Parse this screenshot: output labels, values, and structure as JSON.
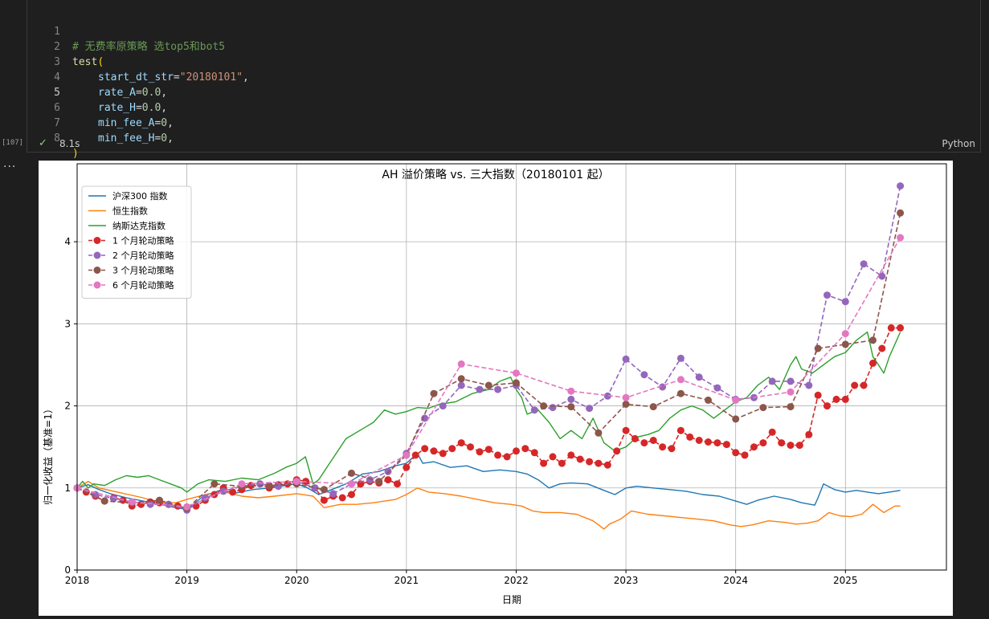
{
  "cell": {
    "exec_count": "[107]",
    "status_time": "8.1s",
    "language": "Python",
    "line_numbers": [
      "1",
      "2",
      "3",
      "4",
      "5",
      "6",
      "7",
      "8"
    ],
    "code": {
      "comment": "# 无费率原策略 选top5和bot5",
      "fn_name": "test",
      "open_paren": "(",
      "p1_name": "start_dt_str",
      "p1_value": "\"20180101\"",
      "p2_name": "rate_A",
      "p2_value": "0.0",
      "p3_name": "rate_H",
      "p3_value": "0.0",
      "p4_name": "min_fee_A",
      "p4_value": "0",
      "p5_name": "min_fee_H",
      "p5_value": "0",
      "eq": "=",
      "comma": ",",
      "close_paren": ")"
    }
  },
  "more_label": "...",
  "chart_data": {
    "type": "line",
    "title": "AH 溢价策略 vs. 三大指数（20180101 起）",
    "xlabel": "日期",
    "ylabel": "归一化收益（基准=1）",
    "xlim": [
      2018.0,
      2025.92
    ],
    "ylim": [
      0,
      4.95
    ],
    "xticks": [
      "2018",
      "2019",
      "2020",
      "2021",
      "2022",
      "2023",
      "2024",
      "2025"
    ],
    "yticks": [
      "0",
      "1",
      "2",
      "3",
      "4"
    ],
    "grid": true,
    "legend_position": "upper-left",
    "colors": {
      "hs300": "#1f77b4",
      "hsi": "#ff7f0e",
      "nasdaq": "#2ca02c",
      "s1": "#d62728",
      "s2": "#9467bd",
      "s3": "#8c564b",
      "s6": "#e377c2"
    },
    "series": [
      {
        "name": "沪深300 指数",
        "key": "hs300",
        "style": "line",
        "x": [
          2018.0,
          2018.1,
          2018.2,
          2018.3,
          2018.45,
          2018.6,
          2018.75,
          2018.9,
          2019.0,
          2019.15,
          2019.3,
          2019.45,
          2019.6,
          2019.75,
          2019.9,
          2020.0,
          2020.1,
          2020.2,
          2020.3,
          2020.45,
          2020.6,
          2020.75,
          2020.9,
          2021.0,
          2021.1,
          2021.15,
          2021.25,
          2021.4,
          2021.55,
          2021.7,
          2021.85,
          2022.0,
          2022.1,
          2022.2,
          2022.3,
          2022.4,
          2022.5,
          2022.65,
          2022.8,
          2022.9,
          2023.0,
          2023.1,
          2023.25,
          2023.4,
          2023.55,
          2023.7,
          2023.85,
          2024.0,
          2024.1,
          2024.2,
          2024.35,
          2024.5,
          2024.6,
          2024.72,
          2024.75,
          2024.8,
          2024.9,
          2025.0,
          2025.1,
          2025.2,
          2025.3,
          2025.4,
          2025.5
        ],
        "y": [
          1.0,
          1.04,
          0.98,
          0.93,
          0.88,
          0.84,
          0.8,
          0.76,
          0.74,
          0.9,
          0.97,
          0.94,
          0.98,
          1.0,
          1.03,
          1.05,
          1.0,
          0.92,
          0.97,
          1.05,
          1.17,
          1.2,
          1.27,
          1.3,
          1.42,
          1.3,
          1.32,
          1.25,
          1.27,
          1.2,
          1.22,
          1.2,
          1.17,
          1.1,
          1.0,
          1.05,
          1.06,
          1.05,
          0.97,
          0.92,
          1.0,
          1.02,
          1.0,
          0.98,
          0.96,
          0.92,
          0.9,
          0.84,
          0.8,
          0.85,
          0.9,
          0.86,
          0.82,
          0.79,
          0.88,
          1.05,
          0.98,
          0.95,
          0.97,
          0.95,
          0.93,
          0.95,
          0.97
        ]
      },
      {
        "name": "恒生指数",
        "key": "hsi",
        "style": "line",
        "x": [
          2018.0,
          2018.1,
          2018.2,
          2018.4,
          2018.6,
          2018.75,
          2018.9,
          2019.0,
          2019.2,
          2019.35,
          2019.5,
          2019.65,
          2019.8,
          2020.0,
          2020.15,
          2020.25,
          2020.4,
          2020.55,
          2020.7,
          2020.9,
          2021.0,
          2021.1,
          2021.2,
          2021.35,
          2021.5,
          2021.65,
          2021.8,
          2021.95,
          2022.05,
          2022.15,
          2022.25,
          2022.4,
          2022.55,
          2022.7,
          2022.8,
          2022.85,
          2022.95,
          2023.05,
          2023.2,
          2023.35,
          2023.5,
          2023.65,
          2023.8,
          2023.95,
          2024.05,
          2024.15,
          2024.3,
          2024.45,
          2024.55,
          2024.65,
          2024.75,
          2024.85,
          2024.95,
          2025.05,
          2025.15,
          2025.25,
          2025.35,
          2025.45,
          2025.5
        ],
        "y": [
          1.0,
          1.08,
          1.0,
          0.94,
          0.88,
          0.82,
          0.82,
          0.86,
          0.93,
          0.95,
          0.9,
          0.88,
          0.9,
          0.93,
          0.9,
          0.76,
          0.8,
          0.8,
          0.82,
          0.86,
          0.92,
          1.0,
          0.95,
          0.93,
          0.9,
          0.86,
          0.82,
          0.8,
          0.78,
          0.72,
          0.7,
          0.7,
          0.68,
          0.6,
          0.5,
          0.56,
          0.62,
          0.72,
          0.68,
          0.66,
          0.64,
          0.62,
          0.6,
          0.55,
          0.53,
          0.55,
          0.6,
          0.58,
          0.56,
          0.57,
          0.6,
          0.7,
          0.66,
          0.65,
          0.68,
          0.8,
          0.7,
          0.78,
          0.78
        ]
      },
      {
        "name": "纳斯达克指数",
        "key": "nasdaq",
        "style": "line",
        "x": [
          2018.0,
          2018.05,
          2018.1,
          2018.15,
          2018.25,
          2018.35,
          2018.45,
          2018.55,
          2018.65,
          2018.75,
          2018.85,
          2018.95,
          2019.0,
          2019.1,
          2019.2,
          2019.35,
          2019.5,
          2019.65,
          2019.8,
          2019.9,
          2020.0,
          2020.08,
          2020.15,
          2020.2,
          2020.3,
          2020.45,
          2020.6,
          2020.7,
          2020.8,
          2020.9,
          2021.0,
          2021.1,
          2021.2,
          2021.3,
          2021.45,
          2021.6,
          2021.75,
          2021.85,
          2021.95,
          2022.0,
          2022.05,
          2022.1,
          2022.2,
          2022.3,
          2022.4,
          2022.5,
          2022.6,
          2022.7,
          2022.8,
          2022.9,
          2023.0,
          2023.1,
          2023.2,
          2023.3,
          2023.4,
          2023.5,
          2023.6,
          2023.7,
          2023.8,
          2023.9,
          2024.0,
          2024.1,
          2024.2,
          2024.3,
          2024.4,
          2024.5,
          2024.55,
          2024.6,
          2024.7,
          2024.8,
          2024.9,
          2025.0,
          2025.1,
          2025.15,
          2025.2,
          2025.25,
          2025.3,
          2025.35,
          2025.4,
          2025.5
        ],
        "y": [
          1.0,
          1.08,
          1.0,
          1.05,
          1.03,
          1.1,
          1.15,
          1.13,
          1.15,
          1.1,
          1.05,
          1.0,
          0.95,
          1.05,
          1.1,
          1.08,
          1.12,
          1.1,
          1.18,
          1.25,
          1.3,
          1.38,
          1.05,
          1.1,
          1.3,
          1.6,
          1.72,
          1.8,
          1.95,
          1.9,
          1.93,
          1.98,
          1.97,
          2.02,
          2.05,
          2.15,
          2.2,
          2.3,
          2.35,
          2.2,
          2.1,
          1.9,
          1.95,
          1.8,
          1.6,
          1.7,
          1.6,
          1.85,
          1.55,
          1.45,
          1.5,
          1.62,
          1.65,
          1.7,
          1.85,
          1.95,
          2.0,
          1.95,
          1.85,
          1.95,
          2.05,
          2.1,
          2.25,
          2.35,
          2.2,
          2.5,
          2.6,
          2.45,
          2.4,
          2.5,
          2.6,
          2.65,
          2.8,
          2.85,
          2.9,
          2.6,
          2.5,
          2.4,
          2.6,
          2.9
        ]
      },
      {
        "name": "1 个月轮动策略",
        "key": "s1",
        "style": "markers",
        "x": [
          2018.0,
          2018.083,
          2018.167,
          2018.25,
          2018.333,
          2018.417,
          2018.5,
          2018.583,
          2018.667,
          2018.75,
          2018.833,
          2018.917,
          2019.0,
          2019.083,
          2019.167,
          2019.25,
          2019.333,
          2019.417,
          2019.5,
          2019.583,
          2019.667,
          2019.75,
          2019.833,
          2019.917,
          2020.0,
          2020.083,
          2020.167,
          2020.25,
          2020.333,
          2020.417,
          2020.5,
          2020.583,
          2020.667,
          2020.75,
          2020.833,
          2020.917,
          2021.0,
          2021.083,
          2021.167,
          2021.25,
          2021.333,
          2021.417,
          2021.5,
          2021.583,
          2021.667,
          2021.75,
          2021.833,
          2021.917,
          2022.0,
          2022.083,
          2022.167,
          2022.25,
          2022.333,
          2022.417,
          2022.5,
          2022.583,
          2022.667,
          2022.75,
          2022.833,
          2022.917,
          2023.0,
          2023.083,
          2023.167,
          2023.25,
          2023.333,
          2023.417,
          2023.5,
          2023.583,
          2023.667,
          2023.75,
          2023.833,
          2023.917,
          2024.0,
          2024.083,
          2024.167,
          2024.25,
          2024.333,
          2024.417,
          2024.5,
          2024.583,
          2024.667,
          2024.75,
          2024.833,
          2024.917,
          2025.0,
          2025.083,
          2025.167,
          2025.25,
          2025.333,
          2025.417,
          2025.5
        ],
        "y": [
          1.0,
          0.95,
          0.9,
          0.84,
          0.88,
          0.85,
          0.78,
          0.8,
          0.83,
          0.82,
          0.8,
          0.78,
          0.75,
          0.78,
          0.85,
          0.92,
          1.0,
          0.95,
          0.98,
          1.03,
          1.05,
          1.0,
          1.04,
          1.05,
          1.1,
          1.08,
          1.0,
          0.85,
          0.9,
          0.88,
          0.92,
          1.05,
          1.08,
          1.06,
          1.1,
          1.05,
          1.25,
          1.4,
          1.48,
          1.45,
          1.42,
          1.48,
          1.55,
          1.5,
          1.44,
          1.47,
          1.4,
          1.38,
          1.45,
          1.48,
          1.43,
          1.3,
          1.38,
          1.3,
          1.4,
          1.35,
          1.32,
          1.3,
          1.28,
          1.45,
          1.7,
          1.6,
          1.55,
          1.58,
          1.5,
          1.48,
          1.7,
          1.62,
          1.58,
          1.56,
          1.55,
          1.53,
          1.43,
          1.4,
          1.5,
          1.55,
          1.68,
          1.55,
          1.52,
          1.52,
          1.65,
          2.13,
          2.0,
          2.08,
          2.08,
          2.25,
          2.25,
          2.52,
          2.7,
          2.95,
          2.95
        ]
      },
      {
        "name": "2 个月轮动策略",
        "key": "s2",
        "style": "markers",
        "x": [
          2018.0,
          2018.167,
          2018.333,
          2018.5,
          2018.667,
          2018.833,
          2019.0,
          2019.167,
          2019.333,
          2019.5,
          2019.667,
          2019.833,
          2020.0,
          2020.167,
          2020.333,
          2020.5,
          2020.667,
          2020.833,
          2021.0,
          2021.167,
          2021.333,
          2021.5,
          2021.667,
          2021.833,
          2022.0,
          2022.167,
          2022.333,
          2022.5,
          2022.667,
          2022.833,
          2023.0,
          2023.167,
          2023.333,
          2023.5,
          2023.667,
          2023.833,
          2024.0,
          2024.167,
          2024.333,
          2024.5,
          2024.667,
          2024.833,
          2025.0,
          2025.167,
          2025.333,
          2025.5
        ],
        "y": [
          1.0,
          0.92,
          0.87,
          0.83,
          0.8,
          0.8,
          0.73,
          0.88,
          0.96,
          1.02,
          1.05,
          1.02,
          1.08,
          1.0,
          0.93,
          1.05,
          1.1,
          1.2,
          1.42,
          1.85,
          2.0,
          2.25,
          2.2,
          2.2,
          2.25,
          1.95,
          1.98,
          2.08,
          1.97,
          2.12,
          2.57,
          2.38,
          2.23,
          2.58,
          2.35,
          2.22,
          2.08,
          2.1,
          2.3,
          2.3,
          2.25,
          3.35,
          3.27,
          3.73,
          3.58,
          4.68
        ]
      },
      {
        "name": "3 个月轮动策略",
        "key": "s3",
        "style": "markers",
        "x": [
          2018.0,
          2018.25,
          2018.5,
          2018.75,
          2019.0,
          2019.25,
          2019.5,
          2019.75,
          2020.0,
          2020.25,
          2020.5,
          2020.75,
          2021.0,
          2021.25,
          2021.5,
          2021.75,
          2022.0,
          2022.25,
          2022.5,
          2022.75,
          2023.0,
          2023.25,
          2023.5,
          2023.75,
          2024.0,
          2024.25,
          2024.5,
          2024.75,
          2025.0,
          2025.25,
          2025.5
        ],
        "y": [
          1.0,
          0.84,
          0.82,
          0.85,
          0.75,
          1.05,
          1.02,
          1.03,
          1.05,
          0.98,
          1.18,
          1.08,
          1.4,
          2.15,
          2.33,
          2.25,
          2.28,
          2.0,
          1.99,
          1.67,
          2.02,
          1.99,
          2.15,
          2.07,
          1.84,
          1.98,
          1.99,
          2.7,
          2.75,
          2.8,
          4.35
        ]
      },
      {
        "name": "6 个月轮动策略",
        "key": "s6",
        "style": "markers",
        "x": [
          2018.0,
          2018.5,
          2019.0,
          2019.5,
          2020.0,
          2020.5,
          2021.0,
          2021.5,
          2022.0,
          2022.5,
          2023.0,
          2023.5,
          2024.0,
          2024.5,
          2025.0,
          2025.5
        ],
        "y": [
          1.0,
          0.83,
          0.77,
          1.05,
          1.08,
          1.05,
          1.4,
          2.51,
          2.4,
          2.18,
          2.1,
          2.32,
          2.07,
          2.17,
          2.88,
          4.05
        ]
      }
    ]
  }
}
